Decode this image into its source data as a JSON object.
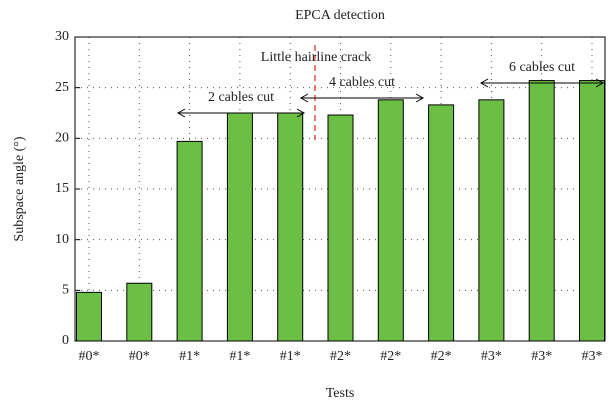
{
  "chart_data": {
    "type": "bar",
    "title": "EPCA detection",
    "x_label": "Tests",
    "y_label": "Subspace angle (°)",
    "categories": [
      "#0*",
      "#0*",
      "#1*",
      "#1*",
      "#1*",
      "#2*",
      "#2*",
      "#2*",
      "#3*",
      "#3*",
      "#3*"
    ],
    "values": [
      4.8,
      5.7,
      19.7,
      22.5,
      22.5,
      22.3,
      23.8,
      23.3,
      23.8,
      25.7,
      25.7
    ],
    "color": "#6cbf45",
    "ylim": [
      0,
      30
    ],
    "yticks": [
      0,
      5,
      10,
      15,
      20,
      25,
      30
    ],
    "grid": true,
    "annotations": [
      "Little hairline crack",
      "2 cables cut",
      "4 cables cut",
      "6 cables cut"
    ]
  }
}
